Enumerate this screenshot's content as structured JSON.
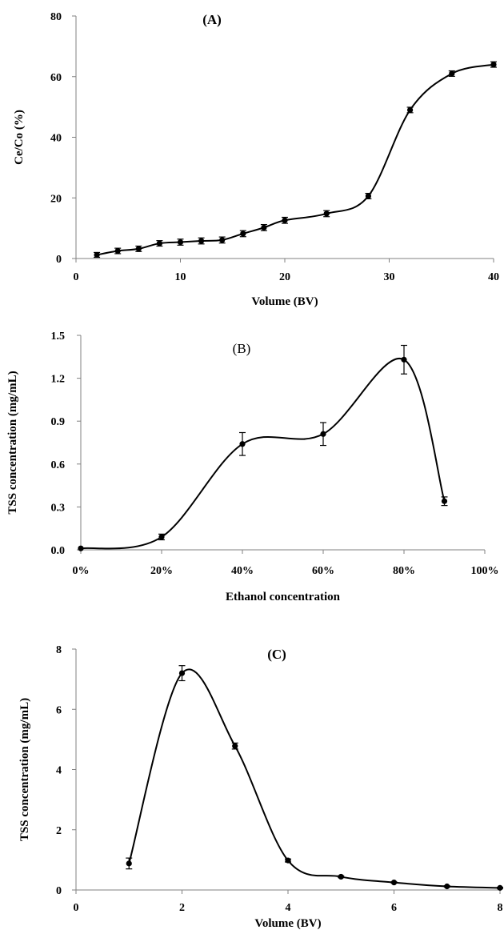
{
  "chart_data": [
    {
      "type": "line",
      "title": "(A)",
      "xlabel": "Volume (BV)",
      "ylabel": "Ce/Co (%)",
      "xlim": [
        0,
        40
      ],
      "ylim": [
        0,
        80
      ],
      "xticks": [
        0,
        10,
        20,
        30,
        40
      ],
      "xtick_labels": [
        "0",
        "10",
        "20",
        "30",
        "40"
      ],
      "yticks": [
        0,
        20,
        40,
        60,
        80
      ],
      "ytick_labels": [
        "0",
        "20",
        "40",
        "60",
        "80"
      ],
      "grid": false,
      "legend": "none",
      "series": [
        {
          "x": [
            2,
            4,
            6,
            8,
            10,
            12,
            14,
            16,
            18,
            20,
            24,
            28,
            32,
            36,
            40
          ],
          "y": [
            1.2,
            2.5,
            3.2,
            5.0,
            5.4,
            5.8,
            6.1,
            8.2,
            10.2,
            12.6,
            14.8,
            20.6,
            49.0,
            61.0,
            64.0
          ],
          "err": [
            0.8,
            0.9,
            0.9,
            0.9,
            1.0,
            1.0,
            1.0,
            1.0,
            1.0,
            1.0,
            1.0,
            0.9,
            0.9,
            0.9,
            0.9
          ]
        }
      ]
    },
    {
      "type": "line",
      "title": "(B)",
      "xlabel": "Ethanol concentration",
      "ylabel": "TSS concentration (mg/mL)",
      "xlim": [
        0,
        100
      ],
      "ylim": [
        0,
        1.5
      ],
      "xticks": [
        0,
        20,
        40,
        60,
        80,
        100
      ],
      "xtick_labels": [
        "0%",
        "20%",
        "40%",
        "60%",
        "80%",
        "100%"
      ],
      "yticks": [
        0,
        0.3,
        0.6,
        0.9,
        1.2,
        1.5
      ],
      "ytick_labels": [
        "0.0",
        "0.3",
        "0.6",
        "0.9",
        "1.2",
        "1.5"
      ],
      "grid": false,
      "legend": "none",
      "series": [
        {
          "x": [
            0,
            20,
            40,
            60,
            80,
            90
          ],
          "y": [
            0.01,
            0.09,
            0.74,
            0.81,
            1.33,
            0.34
          ],
          "err": [
            0.0,
            0.02,
            0.08,
            0.08,
            0.1,
            0.03
          ]
        }
      ]
    },
    {
      "type": "line",
      "title": "(C)",
      "xlabel": "Volume (BV)",
      "ylabel": "TSS concentration (mg/mL)",
      "xlim": [
        0,
        8
      ],
      "ylim": [
        0,
        8
      ],
      "xticks": [
        0,
        2,
        4,
        6,
        8
      ],
      "xtick_labels": [
        "0",
        "2",
        "4",
        "6",
        "8"
      ],
      "yticks": [
        0,
        2,
        4,
        6,
        8
      ],
      "ytick_labels": [
        "0",
        "2",
        "4",
        "6",
        "8"
      ],
      "grid": false,
      "legend": "none",
      "series": [
        {
          "x": [
            1,
            2,
            3,
            4,
            5,
            6,
            7,
            8
          ],
          "y": [
            0.88,
            7.2,
            4.78,
            0.98,
            0.44,
            0.25,
            0.12,
            0.07
          ],
          "err": [
            0.18,
            0.25,
            0.1,
            0.05,
            0.03,
            0.02,
            0.02,
            0.02
          ]
        }
      ]
    }
  ]
}
